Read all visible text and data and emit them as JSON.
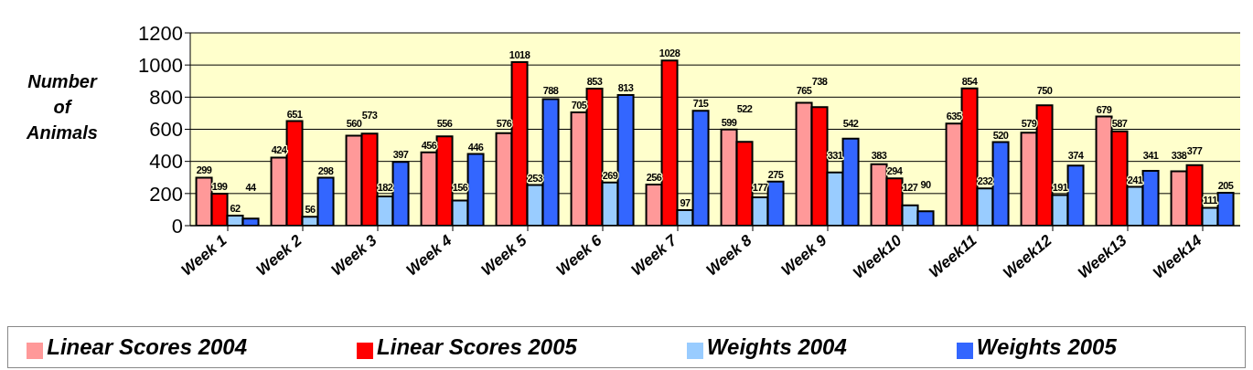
{
  "chart_data": {
    "type": "bar",
    "ylabel": "Number of Animals",
    "categories": [
      "Week 1",
      "Week 2",
      "Week 3",
      "Week 4",
      "Week 5",
      "Week 6",
      "Week 7",
      "Week 8",
      "Week 9",
      "Week10",
      "Week11",
      "Week12",
      "Week13",
      "Week14"
    ],
    "series": [
      {
        "name": "Linear Scores 2004",
        "color": "#ff9999",
        "values": [
          299,
          424,
          560,
          456,
          576,
          705,
          256,
          599,
          765,
          383,
          635,
          579,
          679,
          338
        ]
      },
      {
        "name": "Linear Scores 2005",
        "color": "#ff0000",
        "values": [
          199,
          651,
          573,
          556,
          1018,
          853,
          1028,
          522,
          738,
          294,
          854,
          750,
          587,
          377
        ]
      },
      {
        "name": "Weights 2004",
        "color": "#99ccff",
        "values": [
          62,
          56,
          182,
          156,
          253,
          269,
          97,
          177,
          331,
          127,
          232,
          191,
          241,
          111
        ]
      },
      {
        "name": "Weights 2005",
        "color": "#3366ff",
        "values": [
          44,
          298,
          397,
          446,
          788,
          813,
          715,
          275,
          542,
          90,
          520,
          374,
          341,
          205
        ]
      }
    ],
    "ylim": [
      0,
      1200
    ],
    "yticks": [
      0,
      200,
      400,
      600,
      800,
      1000,
      1200
    ],
    "grid": "y",
    "legend": "bottom",
    "data_labels": true
  }
}
